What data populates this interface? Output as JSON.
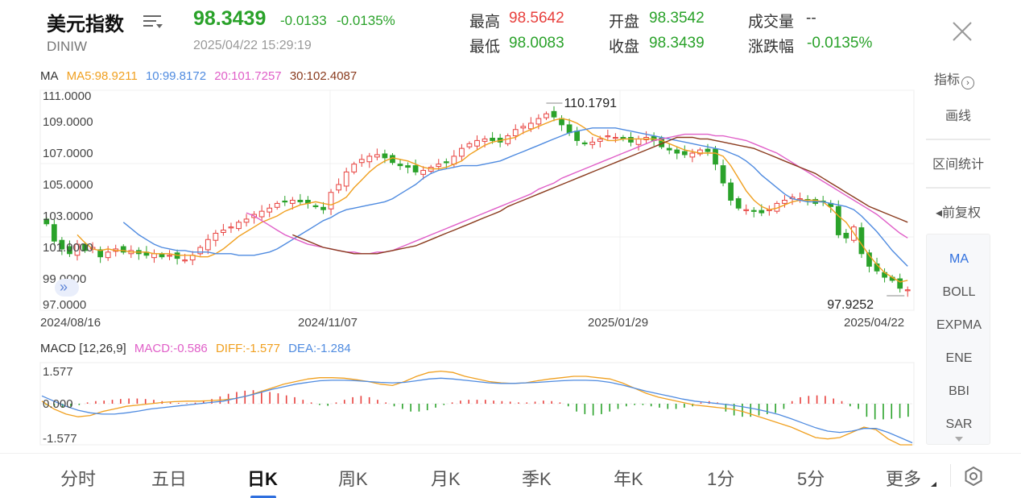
{
  "header": {
    "title": "美元指数",
    "code": "DINIW",
    "price": "98.3439",
    "change": "-0.0133",
    "change_pct": "-0.0135%",
    "time": "2025/04/22 15:29:19",
    "high_label": "最高",
    "high_value": "98.5642",
    "low_label": "最低",
    "low_value": "98.0083",
    "open_label": "开盘",
    "open_value": "98.3542",
    "close_label": "收盘",
    "close_value": "98.3439",
    "volume_label": "成交量",
    "volume_value": "--",
    "range_label": "涨跌幅",
    "range_value": "-0.0135%"
  },
  "colors": {
    "up": "#e8413e",
    "down": "#2aa22a",
    "ma5": "#f0a020",
    "ma10": "#4f8be0",
    "ma20": "#e05fc8",
    "ma30": "#8a3b1e",
    "accent": "#2f6fde"
  },
  "ma_legend": {
    "label": "MA",
    "ma5": "MA5:98.9211",
    "ma10": "10:99.8172",
    "ma20": "20:101.7257",
    "ma30": "30:102.4087"
  },
  "macd_legend": {
    "label": "MACD [12,26,9]",
    "macd": "MACD:-0.586",
    "diff": "DIFF:-1.577",
    "dea": "DEA:-1.284"
  },
  "side": {
    "indicator": "指标",
    "draw": "画线",
    "interval": "区间统计",
    "adjust": "◂前复权"
  },
  "indicators": [
    "MA",
    "BOLL",
    "EXPMA",
    "ENE",
    "BBI",
    "SAR"
  ],
  "tabs": [
    "分时",
    "五日",
    "日K",
    "周K",
    "月K",
    "季K",
    "年K",
    "1分",
    "5分",
    "更多"
  ],
  "active_tab": 2,
  "chart_data": [
    {
      "type": "candlestick",
      "y_ticks": [
        "111.0000",
        "109.0000",
        "107.0000",
        "105.0000",
        "103.0000",
        "101.0000",
        "99.0000",
        "97.0000"
      ],
      "ylim": [
        97.0,
        111.0
      ],
      "x_ticks": [
        "2024/08/16",
        "2024/11/07",
        "2025/01/29",
        "2025/04/22"
      ],
      "annotations": {
        "max": "110.1791",
        "min": "97.9252"
      },
      "close_path": [
        102.5,
        101.4,
        100.9,
        100.6,
        101.2,
        100.8,
        101.0,
        100.4,
        100.7,
        100.9,
        100.7,
        100.8,
        100.6,
        100.5,
        100.6,
        100.4,
        100.5,
        100.3,
        100.2,
        100.5,
        101.0,
        101.5,
        101.9,
        102.1,
        102.3,
        102.6,
        102.8,
        103.1,
        103.3,
        103.5,
        103.8,
        103.9,
        104.0,
        103.9,
        103.8,
        103.6,
        103.4,
        104.5,
        105.0,
        105.8,
        106.3,
        106.6,
        106.8,
        106.9,
        106.7,
        106.4,
        106.2,
        106.1,
        105.8,
        105.9,
        106.1,
        106.3,
        106.4,
        106.8,
        107.3,
        107.6,
        107.8,
        107.9,
        107.8,
        107.7,
        108.1,
        108.5,
        108.7,
        108.9,
        109.2,
        109.5,
        109.3,
        108.8,
        108.3,
        107.8,
        107.6,
        107.7,
        107.9,
        108.1,
        108.0,
        107.9,
        107.7,
        107.9,
        108.0,
        107.8,
        107.4,
        107.2,
        107.0,
        106.9,
        107.0,
        107.2,
        107.1,
        106.3,
        105.1,
        104.0,
        103.5,
        103.4,
        103.3,
        103.2,
        103.4,
        103.8,
        104.0,
        104.2,
        104.1,
        104.0,
        103.8,
        103.9,
        103.6,
        101.8,
        101.6,
        102.3,
        100.6,
        99.8,
        99.5,
        99.1,
        98.9,
        98.4,
        98.3
      ],
      "series": [
        {
          "name": "MA5",
          "values": [
            101.8,
            101.3,
            100.9,
            100.8,
            100.9,
            100.8,
            100.8,
            100.7,
            100.7,
            100.7,
            100.6,
            100.6,
            100.6,
            100.5,
            100.5,
            100.5,
            100.4,
            100.4,
            100.6,
            100.9,
            101.3,
            101.7,
            102.0,
            102.3,
            102.6,
            102.8,
            103.0,
            103.3,
            103.5,
            103.7,
            103.8,
            103.9,
            103.8,
            103.7,
            103.9,
            104.2,
            104.8,
            105.3,
            105.8,
            106.2,
            106.5,
            106.7,
            106.6,
            106.5,
            106.3,
            106.1,
            106.0,
            106.0,
            106.1,
            106.3,
            106.5,
            106.9,
            107.2,
            107.5,
            107.7,
            107.8,
            107.9,
            108.0,
            108.3,
            108.5,
            108.7,
            108.9,
            109.1,
            109.2,
            109.1,
            108.9,
            108.6,
            108.2,
            108.0,
            107.8,
            107.8,
            107.9,
            107.9,
            107.9,
            107.9,
            107.9,
            107.8,
            107.6,
            107.4,
            107.2,
            107.1,
            107.0,
            107.0,
            107.0,
            106.8,
            106.2,
            105.4,
            104.6,
            104.0,
            103.6,
            103.4,
            103.5,
            103.7,
            103.9,
            104.0,
            104.0,
            104.0,
            103.9,
            103.5,
            103.0,
            102.6,
            101.9,
            101.2,
            100.5,
            99.9,
            99.4,
            99.1,
            98.8,
            98.9
          ]
        },
        {
          "name": "MA10",
          "values": [
            102.6,
            102.2,
            101.8,
            101.5,
            101.2,
            101.0,
            100.9,
            100.8,
            100.8,
            100.7,
            100.7,
            100.7,
            100.6,
            100.6,
            100.6,
            100.5,
            100.5,
            100.5,
            100.6,
            100.7,
            100.9,
            101.2,
            101.5,
            101.8,
            102.1,
            102.4,
            102.7,
            102.9,
            103.2,
            103.4,
            103.5,
            103.6,
            103.7,
            103.8,
            103.9,
            104.1,
            104.4,
            104.7,
            105.0,
            105.4,
            105.7,
            105.9,
            106.0,
            106.1,
            106.2,
            106.2,
            106.2,
            106.3,
            106.4,
            106.5,
            106.7,
            106.9,
            107.1,
            107.3,
            107.5,
            107.7,
            107.9,
            108.1,
            108.3,
            108.4,
            108.5,
            108.6,
            108.6,
            108.6,
            108.6,
            108.5,
            108.4,
            108.3,
            108.2,
            108.1,
            108.0,
            107.9,
            107.8,
            107.7,
            107.6,
            107.5,
            107.4,
            107.3,
            107.2,
            107.0,
            106.8,
            106.5,
            106.1,
            105.6,
            105.2,
            104.8,
            104.4,
            104.1,
            104.0,
            103.9,
            103.9,
            103.9,
            103.8,
            103.7,
            103.6,
            103.4,
            103.0,
            102.5,
            102.0,
            101.4,
            100.8,
            100.3,
            99.8
          ]
        },
        {
          "name": "MA20",
          "values": [
            103.2,
            103.0,
            102.7,
            102.4,
            102.1,
            101.8,
            101.6,
            101.4,
            101.2,
            101.1,
            101.0,
            100.9,
            100.8,
            100.7,
            100.7,
            100.6,
            100.6,
            100.7,
            100.7,
            100.8,
            101.0,
            101.2,
            101.4,
            101.6,
            101.8,
            102.0,
            102.2,
            102.4,
            102.6,
            102.8,
            103.0,
            103.2,
            103.4,
            103.6,
            103.8,
            104.0,
            104.2,
            104.4,
            104.7,
            104.9,
            105.1,
            105.4,
            105.6,
            105.8,
            106.0,
            106.2,
            106.4,
            106.6,
            106.8,
            107.0,
            107.2,
            107.4,
            107.6,
            107.8,
            107.9,
            108.0,
            108.1,
            108.2,
            108.2,
            108.2,
            108.2,
            108.1,
            108.1,
            108.0,
            107.9,
            107.8,
            107.6,
            107.4,
            107.2,
            107.0,
            106.7,
            106.4,
            106.1,
            105.8,
            105.5,
            105.2,
            104.9,
            104.6,
            104.3,
            104.0,
            103.7,
            103.4,
            103.1,
            102.7,
            102.3,
            101.9,
            101.6
          ]
        },
        {
          "name": "MA30",
          "values": [
            101.8,
            101.6,
            101.4,
            101.2,
            101.0,
            100.9,
            100.8,
            100.7,
            100.6,
            100.6,
            100.6,
            100.6,
            100.7,
            100.8,
            100.9,
            101.0,
            101.1,
            101.3,
            101.5,
            101.7,
            101.9,
            102.1,
            102.3,
            102.5,
            102.7,
            102.9,
            103.1,
            103.3,
            103.6,
            103.8,
            104.0,
            104.2,
            104.4,
            104.6,
            104.8,
            105.0,
            105.2,
            105.4,
            105.6,
            105.8,
            106.0,
            106.2,
            106.4,
            106.6,
            106.8,
            107.0,
            107.2,
            107.4,
            107.6,
            107.8,
            108.0,
            108.0,
            108.0,
            107.9,
            107.9,
            107.8,
            107.7,
            107.6,
            107.5,
            107.4,
            107.3,
            107.1,
            106.9,
            106.7,
            106.5,
            106.3,
            106.1,
            105.9,
            105.7,
            105.4,
            105.1,
            104.8,
            104.5,
            104.2,
            103.9,
            103.6,
            103.4,
            103.2,
            103.0,
            102.8,
            102.6
          ]
        }
      ]
    },
    {
      "type": "bar",
      "name": "MACD",
      "y_ticks": [
        "1.577",
        "0.000",
        "-1.577"
      ],
      "ylim": [
        -1.577,
        1.577
      ],
      "histogram": [
        -0.05,
        -0.1,
        -0.15,
        -0.1,
        -0.05,
        0.05,
        0.1,
        0.12,
        0.15,
        0.18,
        0.2,
        0.2,
        0.18,
        0.15,
        0.1,
        0.05,
        0.03,
        0.02,
        0.04,
        0.1,
        0.18,
        0.28,
        0.38,
        0.45,
        0.5,
        0.52,
        0.5,
        0.45,
        0.4,
        0.32,
        0.25,
        0.15,
        0.05,
        -0.05,
        -0.08,
        0.05,
        0.15,
        0.25,
        0.3,
        0.25,
        0.15,
        0.05,
        -0.1,
        -0.2,
        -0.3,
        -0.3,
        -0.25,
        -0.15,
        -0.05,
        0.05,
        0.12,
        0.15,
        0.15,
        0.15,
        0.12,
        0.1,
        0.08,
        0.05,
        0.05,
        0.08,
        0.12,
        0.1,
        0.05,
        -0.1,
        -0.3,
        -0.4,
        -0.45,
        -0.4,
        -0.3,
        -0.2,
        -0.1,
        -0.05,
        -0.05,
        -0.1,
        -0.15,
        -0.2,
        -0.2,
        -0.15,
        -0.1,
        0.05,
        0.1,
        0.05,
        -0.3,
        -0.45,
        -0.5,
        -0.5,
        -0.45,
        -0.4,
        -0.35,
        -0.2,
        0.1,
        0.25,
        0.3,
        0.32,
        0.3,
        0.2,
        0.1,
        -0.1,
        -0.2,
        -0.5,
        -0.6,
        -0.6,
        -0.58,
        -0.55,
        -0.5
      ],
      "diff_path": [
        0.1,
        -0.2,
        -0.4,
        -0.5,
        -0.45,
        -0.3,
        -0.2,
        -0.1,
        -0.05,
        0.0,
        0.05,
        0.08,
        0.1,
        0.1,
        0.12,
        0.15,
        0.2,
        0.3,
        0.45,
        0.6,
        0.75,
        0.85,
        0.95,
        1.0,
        1.0,
        0.98,
        0.92,
        0.85,
        0.75,
        0.7,
        0.85,
        1.05,
        1.2,
        1.25,
        1.2,
        1.05,
        0.95,
        0.85,
        0.8,
        0.78,
        0.8,
        0.88,
        0.95,
        1.0,
        1.05,
        1.05,
        1.0,
        0.95,
        0.8,
        0.6,
        0.4,
        0.25,
        0.15,
        0.05,
        -0.05,
        -0.1,
        -0.15,
        -0.2,
        -0.3,
        -0.45,
        -0.6,
        -0.75,
        -0.9,
        -1.1,
        -1.3,
        -1.35,
        -1.3,
        -1.1,
        -0.9,
        -1.0,
        -1.35,
        -1.65,
        -1.8
      ],
      "dea_path": [
        0.3,
        0.1,
        -0.1,
        -0.25,
        -0.35,
        -0.4,
        -0.4,
        -0.35,
        -0.28,
        -0.2,
        -0.15,
        -0.1,
        -0.05,
        0.0,
        0.05,
        0.1,
        0.2,
        0.3,
        0.42,
        0.55,
        0.65,
        0.75,
        0.82,
        0.88,
        0.9,
        0.9,
        0.88,
        0.85,
        0.82,
        0.8,
        0.82,
        0.88,
        0.95,
        0.98,
        0.95,
        0.9,
        0.85,
        0.8,
        0.78,
        0.78,
        0.8,
        0.82,
        0.85,
        0.88,
        0.9,
        0.9,
        0.88,
        0.82,
        0.72,
        0.6,
        0.48,
        0.38,
        0.28,
        0.18,
        0.1,
        0.05,
        0.0,
        -0.05,
        -0.12,
        -0.2,
        -0.3,
        -0.42,
        -0.58,
        -0.75,
        -0.92,
        -1.05,
        -1.1,
        -1.05,
        -0.95,
        -0.95,
        -1.1,
        -1.3,
        -1.5
      ]
    }
  ]
}
